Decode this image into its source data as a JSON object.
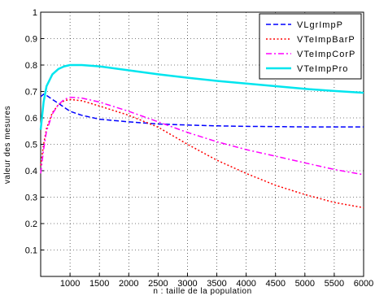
{
  "chart_data": {
    "type": "line",
    "title": "",
    "xlabel": "n : taille de la population",
    "ylabel": "valeur des mesures",
    "xlim": [
      500,
      6000
    ],
    "ylim": [
      0,
      1
    ],
    "xticks": [
      1000,
      1500,
      2000,
      2500,
      3000,
      3500,
      4000,
      4500,
      5000,
      5500,
      6000
    ],
    "xtick_labels": [
      "1000",
      "1500",
      "2000",
      "2500",
      "3000",
      "3500",
      "4000",
      "4500",
      "5000",
      "5500",
      "6000"
    ],
    "yticks": [
      0.1,
      0.2,
      0.3,
      0.4,
      0.5,
      0.6,
      0.7,
      0.8,
      0.9,
      1
    ],
    "ytick_labels": [
      "0.1",
      "0.2",
      "0.3",
      "0.4",
      "0.5",
      "0.6",
      "0.7",
      "0.8",
      "0.9",
      "1"
    ],
    "grid": true,
    "legend_position": "top-right",
    "series": [
      {
        "name": "VLgrImpP",
        "color": "#0000ff",
        "style": "dashed",
        "x": [
          500,
          550,
          600,
          700,
          800,
          900,
          1000,
          1200,
          1500,
          2000,
          2500,
          3000,
          3500,
          4000,
          4500,
          5000,
          5500,
          6000
        ],
        "y": [
          0.68,
          0.69,
          0.685,
          0.67,
          0.655,
          0.64,
          0.625,
          0.61,
          0.595,
          0.585,
          0.577,
          0.573,
          0.57,
          0.568,
          0.567,
          0.566,
          0.566,
          0.566
        ]
      },
      {
        "name": "VTeImpBarP",
        "color": "#ff0000",
        "style": "dotted",
        "x": [
          500,
          550,
          600,
          700,
          800,
          900,
          1000,
          1200,
          1500,
          2000,
          2500,
          3000,
          3500,
          4000,
          4500,
          5000,
          5500,
          6000
        ],
        "y": [
          0.42,
          0.5,
          0.56,
          0.62,
          0.65,
          0.665,
          0.67,
          0.665,
          0.645,
          0.61,
          0.565,
          0.5,
          0.44,
          0.39,
          0.345,
          0.31,
          0.28,
          0.26
        ]
      },
      {
        "name": "VTeImpCorP",
        "color": "#ff00ff",
        "style": "dashdot",
        "x": [
          500,
          550,
          600,
          700,
          800,
          900,
          1000,
          1200,
          1500,
          2000,
          2500,
          3000,
          3500,
          4000,
          4500,
          5000,
          5500,
          6000
        ],
        "y": [
          0.39,
          0.48,
          0.55,
          0.615,
          0.65,
          0.67,
          0.678,
          0.675,
          0.66,
          0.625,
          0.585,
          0.545,
          0.51,
          0.48,
          0.455,
          0.43,
          0.405,
          0.385
        ]
      },
      {
        "name": "VTeImpPro",
        "color": "#00e5ee",
        "style": "solid",
        "x": [
          500,
          550,
          600,
          700,
          800,
          900,
          1000,
          1200,
          1500,
          2000,
          2500,
          3000,
          3500,
          4000,
          4500,
          5000,
          5500,
          6000
        ],
        "y": [
          0.555,
          0.66,
          0.72,
          0.765,
          0.785,
          0.795,
          0.8,
          0.8,
          0.795,
          0.78,
          0.765,
          0.752,
          0.74,
          0.73,
          0.72,
          0.71,
          0.702,
          0.695
        ]
      }
    ]
  }
}
